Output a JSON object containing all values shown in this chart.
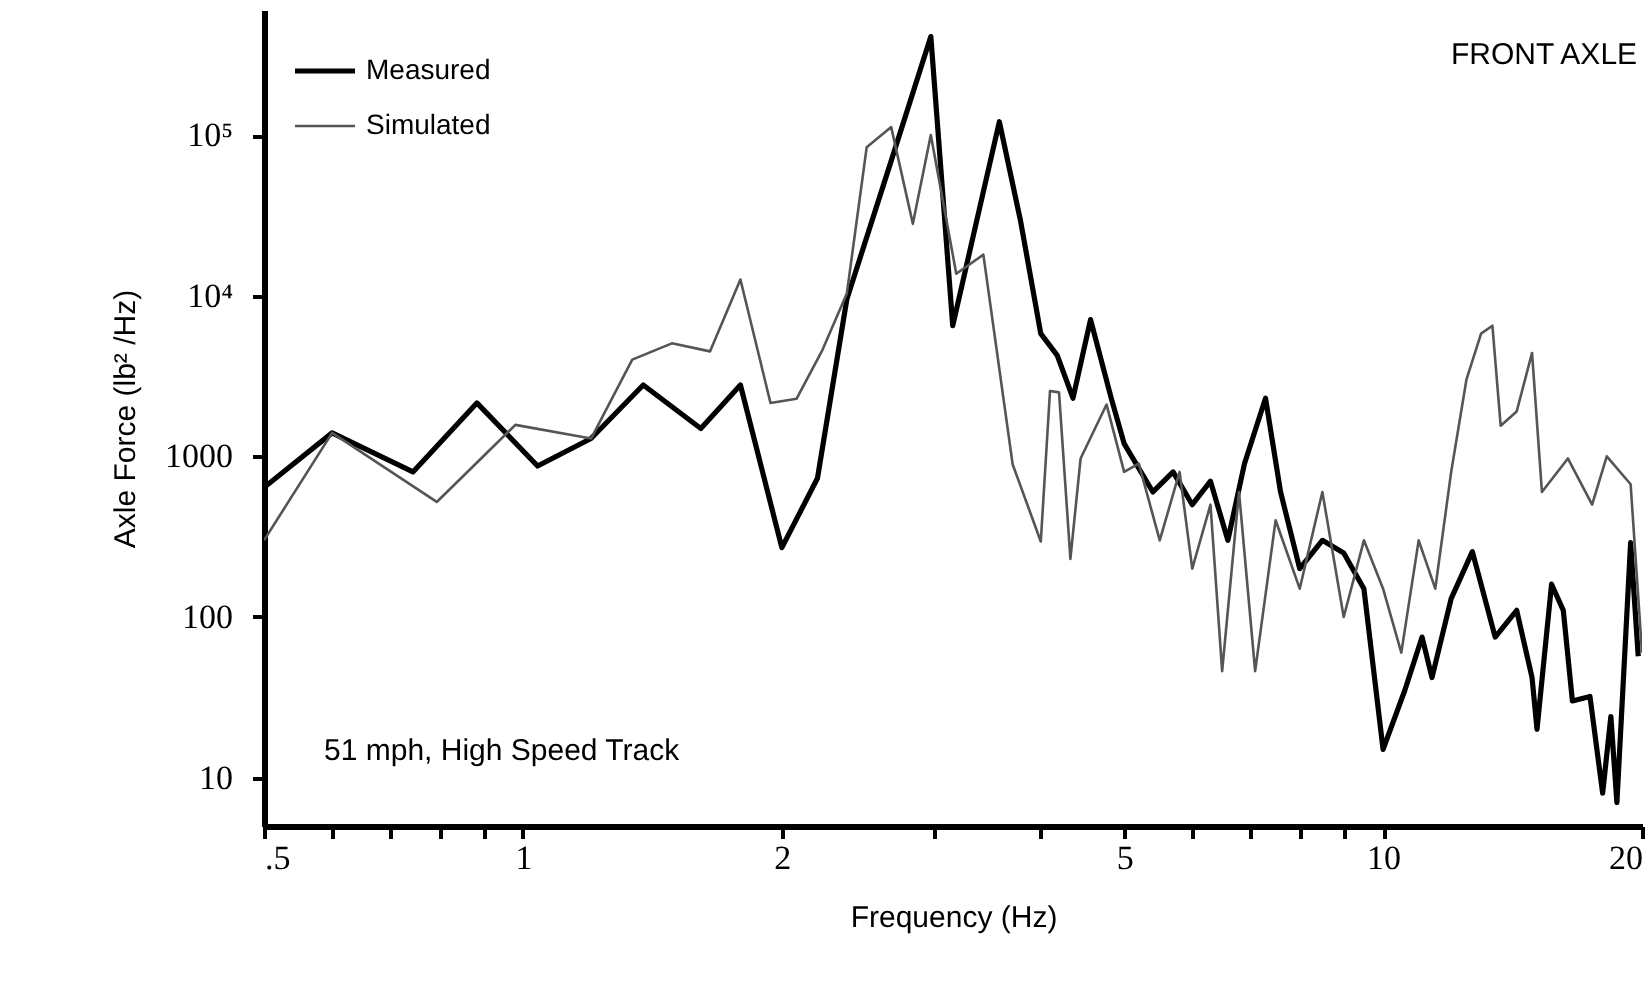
{
  "chart_data": {
    "type": "line",
    "xlabel": "Frequency  (Hz)",
    "ylabel": "Axle Force (lb² /Hz)",
    "annotations": [
      "FRONT AXLE",
      "51 mph, High Speed Track"
    ],
    "log": "xy",
    "grid": false,
    "legend": "top left",
    "xlim": [
      0.5,
      20
    ],
    "ylim": [
      5,
      600000
    ],
    "xticks": [
      {
        "value": 0.5,
        "label": ".5"
      },
      {
        "value": 0.6,
        "label": null
      },
      {
        "value": 0.7,
        "label": null
      },
      {
        "value": 0.8,
        "label": null
      },
      {
        "value": 0.9,
        "label": null
      },
      1,
      2,
      {
        "value": 3,
        "label": null
      },
      {
        "value": 4,
        "label": null
      },
      5,
      {
        "value": 6,
        "label": null
      },
      {
        "value": 7,
        "label": null
      },
      {
        "value": 8,
        "label": null
      },
      {
        "value": 9,
        "label": null
      },
      10,
      20
    ],
    "yticks": [
      10,
      100,
      1000,
      {
        "value": 10000,
        "label": "10⁴"
      },
      {
        "value": 100000,
        "label": "10⁵"
      }
    ],
    "series": [
      {
        "name": "Measured",
        "color": "#000000",
        "x": [
          0.5,
          0.6,
          0.745,
          0.884,
          1.04,
          1.2,
          1.38,
          1.61,
          1.79,
          2.0,
          2.2,
          2.38,
          2.68,
          2.98,
          3.16,
          3.58,
          3.79,
          4.0,
          4.18,
          4.36,
          4.57,
          4.83,
          5.0,
          5.4,
          5.7,
          6.0,
          6.3,
          6.6,
          6.9,
          7.3,
          7.6,
          8.0,
          8.5,
          9.0,
          9.5,
          10.0,
          10.6,
          11.1,
          11.4,
          12.0,
          12.7,
          13.5,
          14.3,
          14.9,
          15.1,
          15.7,
          16.2,
          16.6,
          17.4,
          18.0,
          18.4,
          18.7,
          19.4,
          19.8
        ],
        "values": [
          640,
          1400,
          800,
          2150,
          870,
          1290,
          2780,
          1490,
          2780,
          270,
          730,
          9500,
          69000,
          410000,
          6500,
          121000,
          29000,
          5800,
          4250,
          2300,
          7100,
          2300,
          1200,
          600,
          800,
          500,
          700,
          300,
          900,
          2300,
          600,
          200,
          300,
          250,
          150,
          15,
          35,
          75,
          42,
          130,
          255,
          75,
          110,
          42,
          20,
          160,
          110,
          30,
          32,
          8,
          24,
          7,
          290,
          57
        ]
      },
      {
        "name": "Simulated",
        "color": "#555555",
        "x": [
          0.5,
          0.6,
          0.794,
          0.98,
          1.2,
          1.34,
          1.49,
          1.65,
          1.79,
          1.94,
          2.08,
          2.23,
          2.38,
          2.51,
          2.68,
          2.84,
          2.98,
          3.19,
          3.43,
          3.71,
          4.0,
          4.1,
          4.2,
          4.33,
          4.45,
          4.77,
          5.0,
          5.2,
          5.5,
          5.8,
          6.0,
          6.3,
          6.5,
          6.8,
          7.1,
          7.5,
          8.0,
          8.5,
          9.0,
          9.5,
          10.0,
          10.5,
          11.0,
          11.5,
          12.0,
          12.5,
          13.0,
          13.4,
          13.7,
          14.3,
          14.9,
          15.3,
          16.4,
          17.5,
          18.2,
          19.4,
          20.0
        ],
        "values": [
          300,
          1400,
          520,
          1570,
          1290,
          4000,
          5050,
          4500,
          12600,
          2150,
          2280,
          4600,
          10300,
          84000,
          112000,
          28000,
          100000,
          13700,
          18000,
          890,
          295,
          2550,
          2500,
          230,
          970,
          2100,
          800,
          900,
          300,
          800,
          200,
          500,
          46,
          600,
          46,
          400,
          150,
          600,
          100,
          300,
          150,
          60,
          300,
          150,
          800,
          3000,
          5800,
          6500,
          1550,
          1900,
          4400,
          600,
          970,
          500,
          1000,
          670,
          60
        ]
      }
    ]
  }
}
